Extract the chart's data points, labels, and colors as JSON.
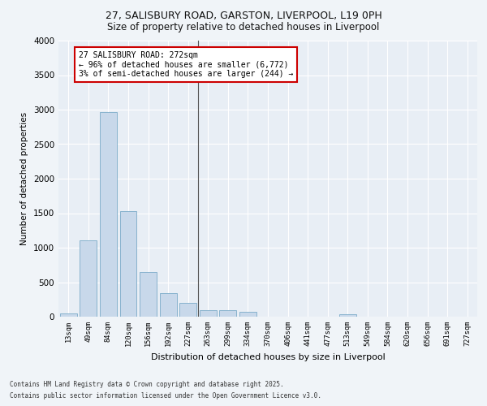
{
  "title_line1": "27, SALISBURY ROAD, GARSTON, LIVERPOOL, L19 0PH",
  "title_line2": "Size of property relative to detached houses in Liverpool",
  "xlabel": "Distribution of detached houses by size in Liverpool",
  "ylabel": "Number of detached properties",
  "categories": [
    "13sqm",
    "49sqm",
    "84sqm",
    "120sqm",
    "156sqm",
    "192sqm",
    "227sqm",
    "263sqm",
    "299sqm",
    "334sqm",
    "370sqm",
    "406sqm",
    "441sqm",
    "477sqm",
    "513sqm",
    "549sqm",
    "584sqm",
    "620sqm",
    "656sqm",
    "691sqm",
    "727sqm"
  ],
  "values": [
    50,
    1110,
    2960,
    1530,
    650,
    340,
    200,
    100,
    100,
    70,
    0,
    0,
    0,
    0,
    35,
    0,
    0,
    0,
    0,
    0,
    0
  ],
  "bar_color": "#c8d8ea",
  "bar_edge_color": "#7aaac8",
  "annotation_text": "27 SALISBURY ROAD: 272sqm\n← 96% of detached houses are smaller (6,772)\n3% of semi-detached houses are larger (244) →",
  "annotation_box_color": "#ffffff",
  "annotation_border_color": "#cc0000",
  "vline_x": 7,
  "ylim": [
    0,
    4000
  ],
  "yticks": [
    0,
    500,
    1000,
    1500,
    2000,
    2500,
    3000,
    3500,
    4000
  ],
  "bg_color": "#e8eef5",
  "grid_color": "#ffffff",
  "footer_line1": "Contains HM Land Registry data © Crown copyright and database right 2025.",
  "footer_line2": "Contains public sector information licensed under the Open Government Licence v3.0."
}
